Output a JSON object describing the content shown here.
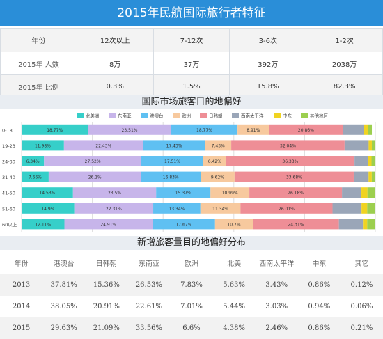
{
  "title": "2015年民航国际旅行者特征",
  "frequency_table": {
    "header": [
      "年份",
      "12次以上",
      "7-12次",
      "3-6次",
      "1-2次"
    ],
    "rows": [
      [
        "2015年 人数",
        "8万",
        "37万",
        "392万",
        "2038万"
      ],
      [
        "2015年 比例",
        "0.3%",
        "1.5%",
        "15.8%",
        "82.3%"
      ]
    ]
  },
  "chart_section_title": "国际市场旅客目的地偏好",
  "share_section_title": "新增旅客量目的地偏好分布",
  "colors": {
    "banner": "#2a8ed8",
    "series": [
      "#36cfc9",
      "#c7b5ea",
      "#5fc0f2",
      "#f7c99e",
      "#ee8e96",
      "#9aa6b8",
      "#f0d321",
      "#9ccf4f"
    ]
  },
  "chart_data": {
    "type": "bar",
    "orientation": "horizontal",
    "stacked": true,
    "title": "国际市场旅客目的地偏好",
    "categories": [
      "0-18",
      "19-23",
      "24-30",
      "31-40",
      "41-50",
      "51-60",
      "60以上"
    ],
    "series": [
      {
        "name": "北美洲",
        "values": [
          18.77,
          11.98,
          6.34,
          7.66,
          14.53,
          14.9,
          12.11
        ]
      },
      {
        "name": "东南亚",
        "values": [
          23.51,
          22.43,
          27.52,
          26.1,
          23.5,
          22.31,
          24.91
        ]
      },
      {
        "name": "港澳台",
        "values": [
          18.77,
          17.43,
          17.51,
          16.83,
          15.37,
          13.34,
          17.67
        ]
      },
      {
        "name": "欧洲",
        "values": [
          8.91,
          7.43,
          6.42,
          9.62,
          10.99,
          11.34,
          10.7
        ]
      },
      {
        "name": "日韩朝",
        "values": [
          20.86,
          32.04,
          36.33,
          33.68,
          26.18,
          26.01,
          24.31
        ]
      },
      {
        "name": "西南太平洋",
        "values": [
          6.0,
          6.8,
          3.8,
          4.2,
          5.5,
          8.2,
          6.8
        ]
      },
      {
        "name": "中东",
        "values": [
          1.1,
          0.9,
          1.0,
          0.9,
          1.7,
          1.6,
          1.2
        ]
      },
      {
        "name": "其他地区",
        "values": [
          1.1,
          1.0,
          1.1,
          1.0,
          2.2,
          2.3,
          2.3
        ]
      }
    ],
    "xlim": [
      0,
      100
    ],
    "xticks": [
      "0%",
      "20%",
      "40%",
      "60%",
      "80%",
      "100%"
    ],
    "legend": "top",
    "grid": true
  },
  "share_table": {
    "header": [
      "年份",
      "港澳台",
      "日韩朝",
      "东南亚",
      "欧洲",
      "北美",
      "西南太平洋",
      "中东",
      "其它"
    ],
    "rows": [
      [
        "2013",
        "37.81%",
        "15.36%",
        "26.53%",
        "7.83%",
        "5.63%",
        "3.43%",
        "0.86%",
        "0.12%"
      ],
      [
        "2014",
        "38.05%",
        "20.91%",
        "22.61%",
        "7.01%",
        "5.44%",
        "3.03%",
        "0.94%",
        "0.06%"
      ],
      [
        "2015",
        "29.63%",
        "21.09%",
        "33.56%",
        "6.6%",
        "4.38%",
        "2.46%",
        "0.86%",
        "0.21%"
      ]
    ]
  }
}
